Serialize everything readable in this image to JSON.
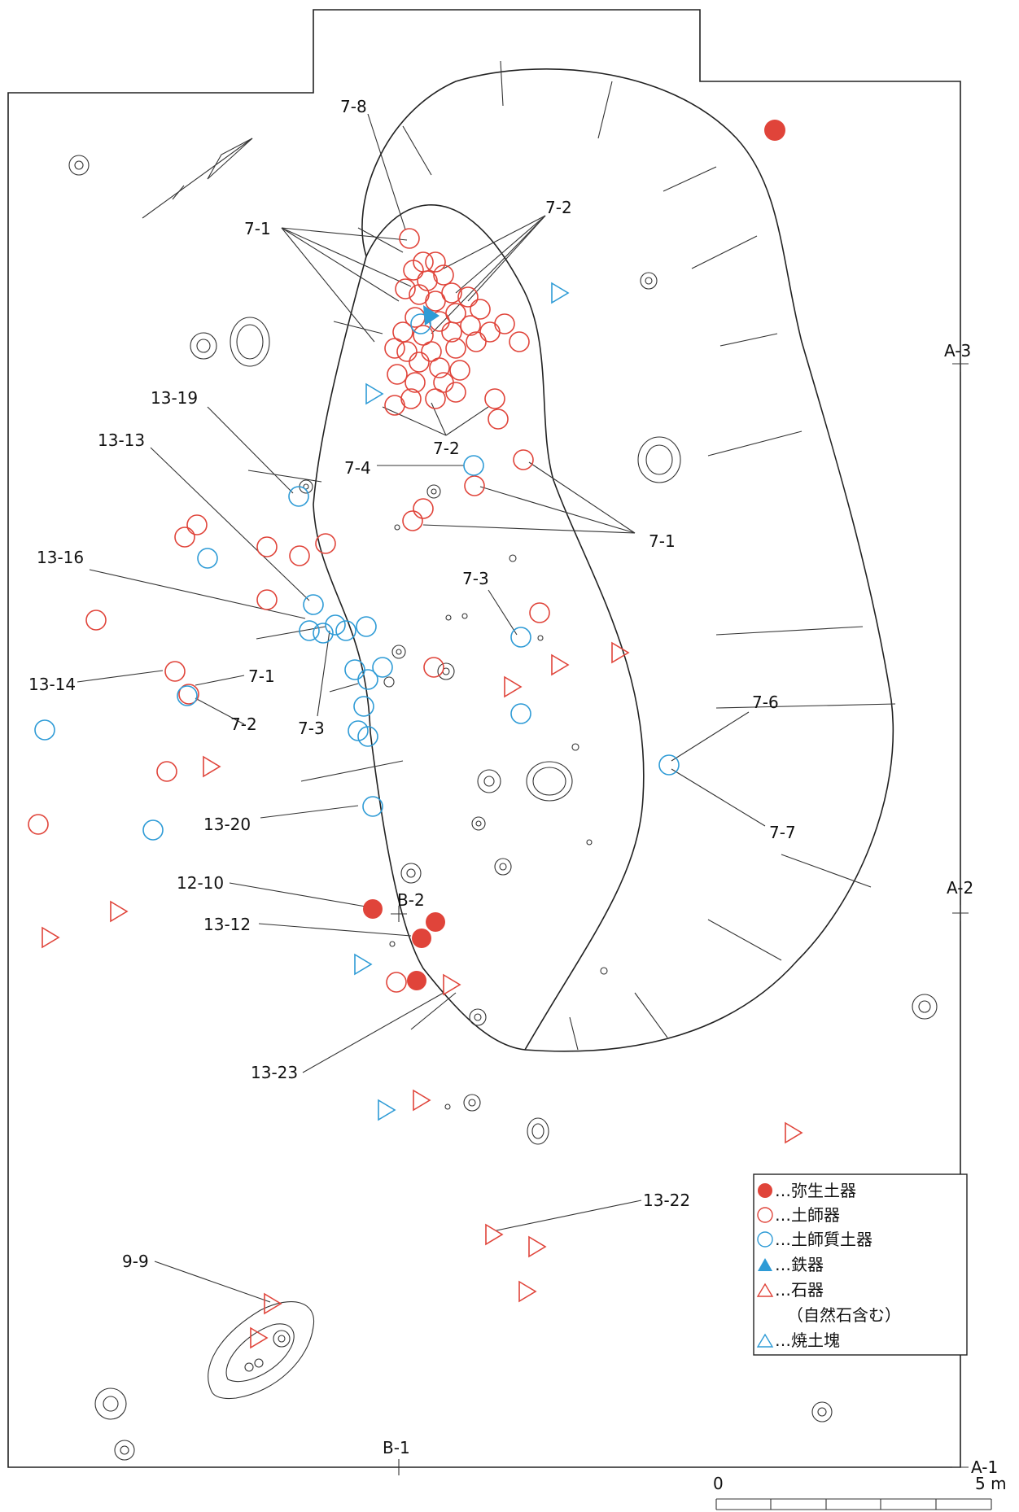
{
  "colors": {
    "red": "#e0443a",
    "blue": "#2e9bd6",
    "line": "#222222"
  },
  "labels": {
    "l_7_8": "7-8",
    "l_7_1_top": "7-1",
    "l_7_2_top": "7-2",
    "l_13_19": "13-19",
    "l_13_13": "13-13",
    "l_7_2_mid": "7-2",
    "l_7_4": "7-4",
    "l_7_1_right": "7-1",
    "l_13_16": "13-16",
    "l_7_3_mid": "7-3",
    "l_13_14": "13-14",
    "l_7_1_left": "7-1",
    "l_7_2_left": "7-2",
    "l_7_3_left": "7-3",
    "l_7_6": "7-6",
    "l_7_7": "7-7",
    "l_13_20": "13-20",
    "l_12_10": "12-10",
    "l_b2": "B-2",
    "l_13_12": "13-12",
    "l_13_23": "13-23",
    "l_13_22": "13-22",
    "l_9_9": "9-9",
    "l_a3": "A-3",
    "l_a2": "A-2",
    "l_a1": "A-1",
    "l_b1": "B-1"
  },
  "legend": {
    "yayoi": "…弥生土器",
    "hajiki": "…土師器",
    "hajishitsu": "…土師質土器",
    "tekki": "…鉄器",
    "sekki": "…石器",
    "sekki_note": "（自然石含む）",
    "shodo": "…焼土塊"
  },
  "scale": {
    "start": "0",
    "end": "5 m"
  }
}
